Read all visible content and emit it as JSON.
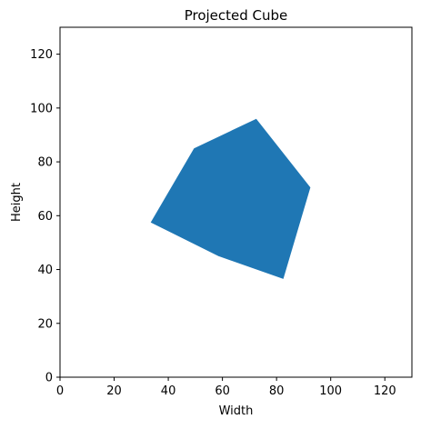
{
  "chart_data": {
    "type": "area",
    "title": "Projected Cube",
    "xlabel": "Width",
    "ylabel": "Height",
    "xlim": [
      0,
      130
    ],
    "ylim": [
      0,
      130
    ],
    "x_ticks": [
      0,
      20,
      40,
      60,
      80,
      100,
      120
    ],
    "y_ticks": [
      0,
      20,
      40,
      60,
      80,
      100,
      120
    ],
    "grid": false,
    "legend": "none",
    "series": [
      {
        "shape": "filled polygon",
        "color": "#1f77b4",
        "points": [
          {
            "x": 33.5,
            "y": 57.5
          },
          {
            "x": 49.5,
            "y": 85.0
          },
          {
            "x": 72.5,
            "y": 96.0
          },
          {
            "x": 92.5,
            "y": 70.5
          },
          {
            "x": 82.5,
            "y": 36.5
          },
          {
            "x": 58.5,
            "y": 45.0
          }
        ]
      }
    ]
  }
}
